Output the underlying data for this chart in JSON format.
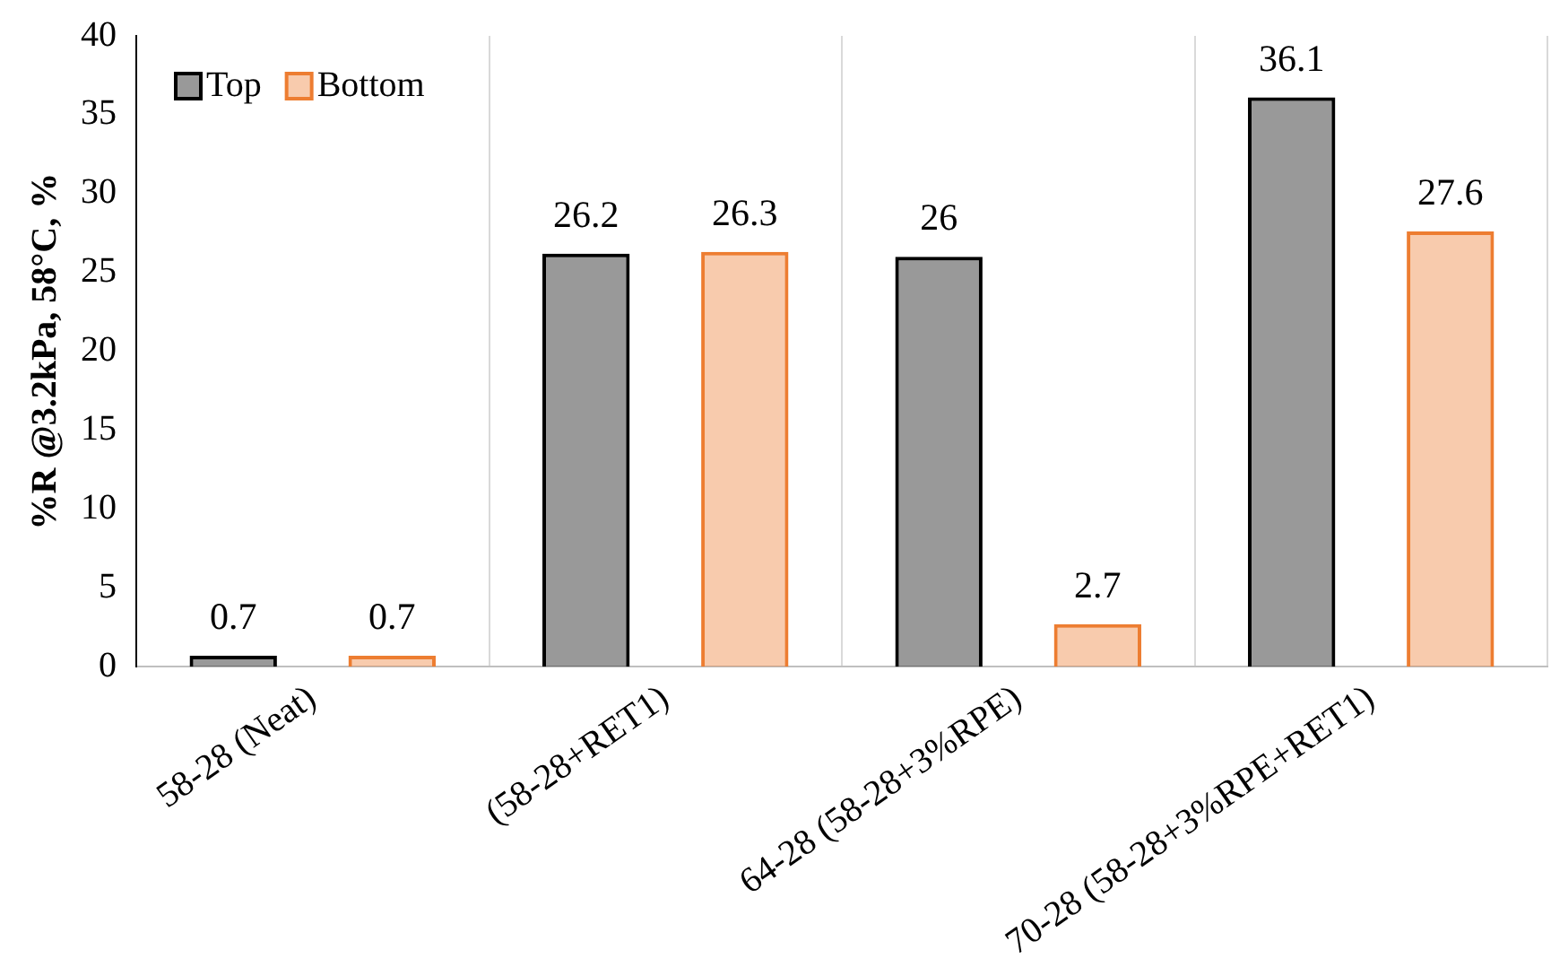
{
  "chart_data": {
    "type": "bar",
    "ylabel": "%R @3.2kPa, 58°C, %",
    "categories": [
      "58-28 (Neat)",
      "(58-28+RET1)",
      "64-28 (58-28+3%RPE)",
      "70-28 (58-28+3%RPE+RET1)"
    ],
    "series": [
      {
        "name": "Top",
        "color": "#000000",
        "values": [
          0.7,
          26.2,
          26,
          36.1
        ]
      },
      {
        "name": "Bottom",
        "color": "#ed7d31",
        "values": [
          0.7,
          26.3,
          2.7,
          27.6
        ]
      }
    ],
    "ylim": [
      0,
      40
    ],
    "yticks": [
      0,
      5,
      10,
      15,
      20,
      25,
      30,
      35,
      40
    ],
    "grid": "x",
    "legend": "top left",
    "data_labels": true
  }
}
